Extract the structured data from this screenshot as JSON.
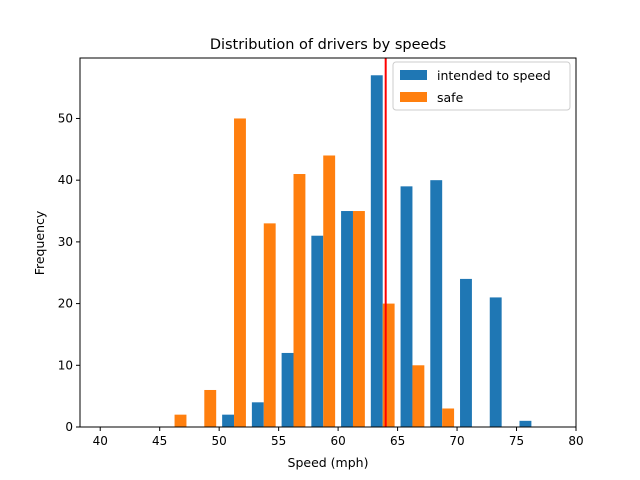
{
  "chart_data": {
    "type": "bar",
    "title": "Distribution of drivers by speeds",
    "xlabel": "Speed (mph)",
    "ylabel": "Frequency",
    "xlim": [
      38.3,
      80.0
    ],
    "ylim": [
      0,
      59.8
    ],
    "xticks": [
      40,
      45,
      50,
      55,
      60,
      65,
      70,
      75,
      80
    ],
    "yticks": [
      0,
      10,
      20,
      30,
      40,
      50
    ],
    "grid": false,
    "legend_position": "top-right",
    "bin_edges": [
      45.0,
      47.5,
      50.0,
      52.5,
      55.0,
      57.5,
      60.0,
      62.5,
      65.0,
      67.5,
      70.0,
      72.5,
      75.0,
      77.5
    ],
    "series": [
      {
        "name": "intended to speed",
        "color": "#1f77b4",
        "values": [
          0,
          0,
          2,
          4,
          12,
          31,
          35,
          57,
          39,
          40,
          24,
          21,
          1
        ]
      },
      {
        "name": "safe",
        "color": "#ff7f0e",
        "values": [
          2,
          6,
          50,
          33,
          41,
          44,
          35,
          20,
          10,
          3,
          0,
          0,
          0
        ]
      }
    ],
    "reference_line": {
      "x": 64,
      "color": "#ff0000"
    }
  }
}
